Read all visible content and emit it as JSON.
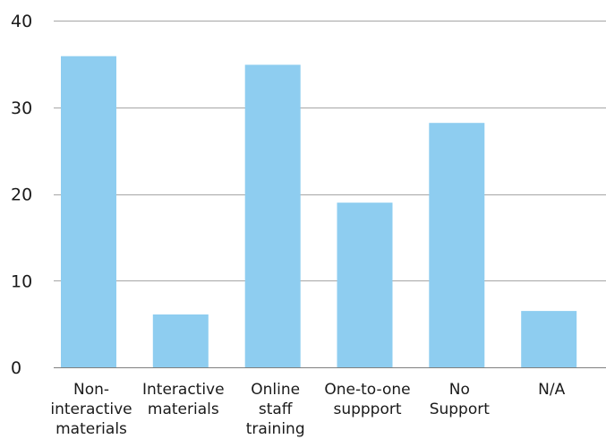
{
  "chart_data": {
    "type": "bar",
    "categories": [
      [
        "Non-",
        "interactive",
        "materials"
      ],
      [
        "Interactive",
        "materials"
      ],
      [
        "Online",
        "staff",
        "training"
      ],
      [
        "One-to-one",
        "suppport"
      ],
      [
        "No",
        "Support"
      ],
      [
        "N/A"
      ]
    ],
    "values": [
      35.9,
      6.1,
      34.9,
      19.0,
      28.2,
      6.5
    ],
    "ylim": [
      0,
      40
    ],
    "yticks": [
      0,
      10,
      20,
      30,
      40
    ],
    "bar_color": "#8ecdf0",
    "grid": true,
    "legend": "none"
  }
}
